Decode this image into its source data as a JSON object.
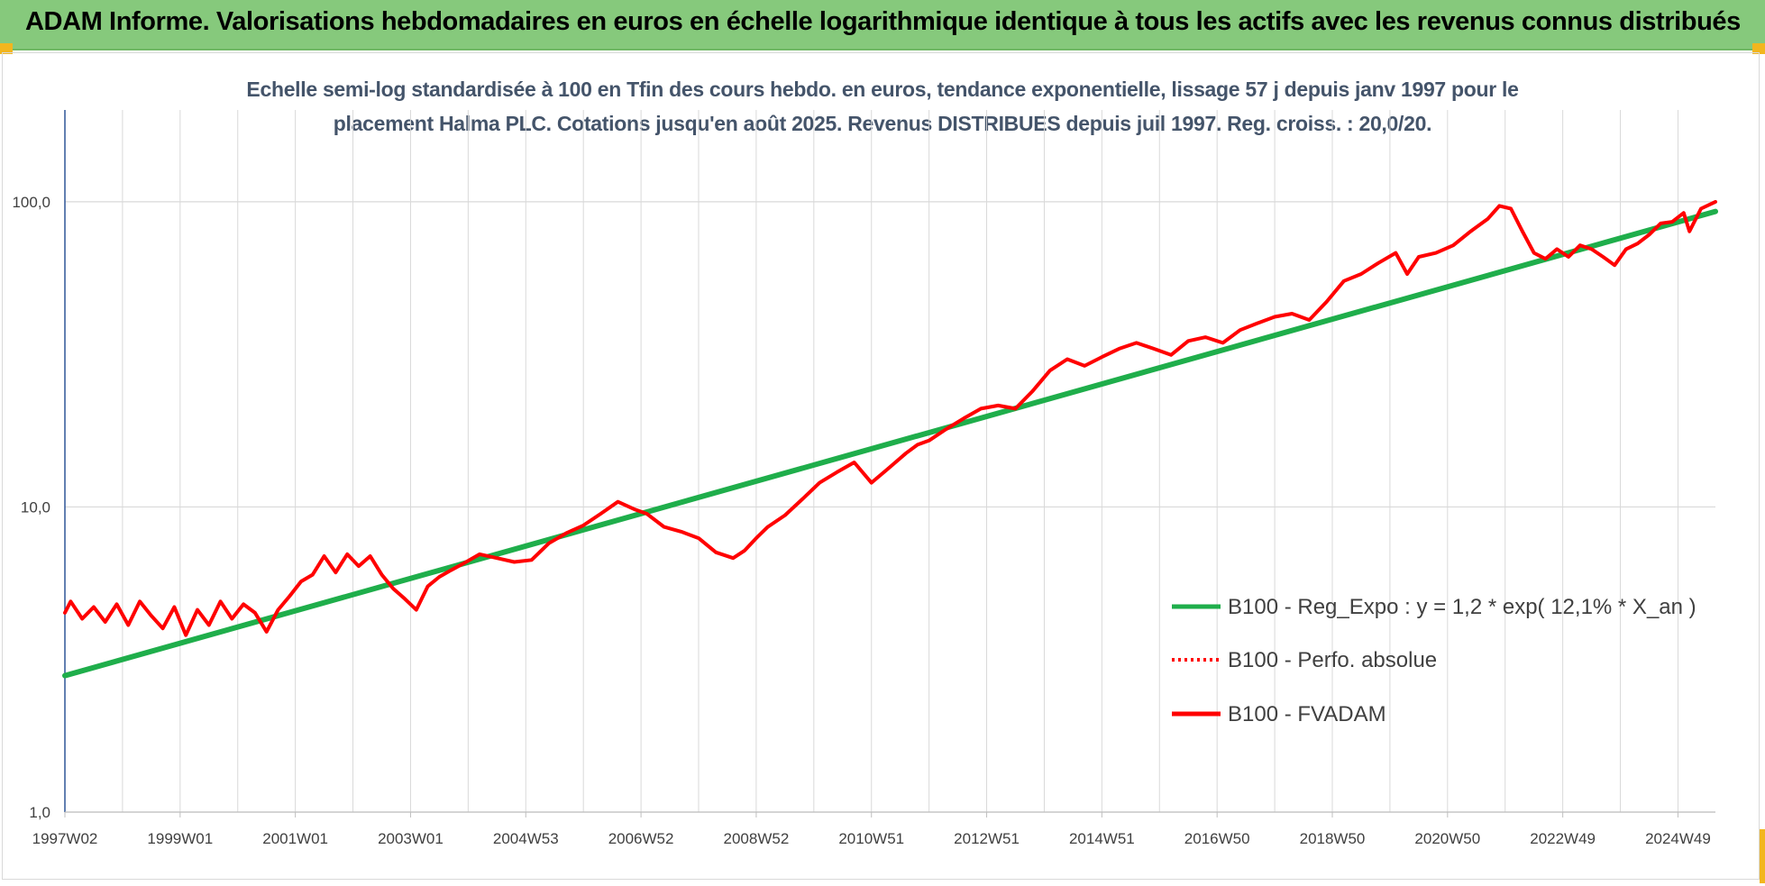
{
  "banner": {
    "title": "ADAM Informe. Valorisations hebdomadaires en euros en échelle logarithmique identique à tous les actifs avec les revenus connus distribués"
  },
  "colors": {
    "banner": "#86c97c",
    "accent_corner": "#f2b61e",
    "regression": "#1fae4b",
    "fvadam": "#ff0000",
    "perfo": "#ff0000",
    "grid": "#d9d9d9"
  },
  "chart_data": {
    "type": "line",
    "title_line1": "Echelle semi-log standardisée à 100 en Tfin des cours hebdo. en euros, tendance exponentielle, lissage 57 j depuis janv 1997 pour le",
    "title_line2": "placement Halma PLC. Cotations jusqu'en août 2025. Revenus DISTRIBUES depuis juil 1997. Reg. croiss. : 20,0/20.",
    "y_scale": "log",
    "ylim": [
      1,
      200
    ],
    "y_ticks": [
      "1,0",
      "10,0",
      "100,0"
    ],
    "y_tick_values": [
      1,
      10,
      100
    ],
    "xlim": [
      1997.0,
      2025.65
    ],
    "x_ticks": [
      "1997W02",
      "1999W01",
      "2001W01",
      "2003W01",
      "2004W53",
      "2006W52",
      "2008W52",
      "2010W51",
      "2012W51",
      "2014W51",
      "2016W50",
      "2018W50",
      "2020W50",
      "2022W49",
      "2024W49"
    ],
    "x_tick_values": [
      1997.0,
      1999.0,
      2001.0,
      2003.0,
      2005.0,
      2007.0,
      2009.0,
      2011.0,
      2013.0,
      2015.0,
      2017.0,
      2019.0,
      2021.0,
      2023.0,
      2025.0
    ],
    "grid": true,
    "legend_position": "right",
    "series": [
      {
        "name": "B100 - Reg_Expo : y = 1,2 * exp( 12,1% * X_an )",
        "style": "solid",
        "color": "#1fae4b",
        "x": [
          1997.0,
          2025.65
        ],
        "y": [
          2.8,
          93
        ]
      },
      {
        "name": "B100 - Perfo. absolue",
        "style": "dotted",
        "color": "#ff0000",
        "x": [],
        "y": []
      },
      {
        "name": "B100 - FVADAM",
        "style": "solid",
        "color": "#ff0000",
        "x": [
          1997.0,
          1997.1,
          1997.3,
          1997.5,
          1997.7,
          1997.9,
          1998.1,
          1998.3,
          1998.5,
          1998.7,
          1998.9,
          1999.1,
          1999.3,
          1999.5,
          1999.7,
          1999.9,
          2000.1,
          2000.3,
          2000.5,
          2000.7,
          2000.9,
          2001.1,
          2001.3,
          2001.5,
          2001.7,
          2001.9,
          2002.1,
          2002.3,
          2002.5,
          2002.7,
          2002.9,
          2003.1,
          2003.3,
          2003.5,
          2003.7,
          2003.9,
          2004.2,
          2004.5,
          2004.8,
          2005.1,
          2005.4,
          2005.7,
          2006.0,
          2006.3,
          2006.6,
          2006.9,
          2007.1,
          2007.4,
          2007.7,
          2008.0,
          2008.3,
          2008.6,
          2008.8,
          2009.0,
          2009.2,
          2009.5,
          2009.8,
          2010.1,
          2010.4,
          2010.7,
          2011.0,
          2011.3,
          2011.6,
          2011.8,
          2012.0,
          2012.3,
          2012.6,
          2012.9,
          2013.2,
          2013.5,
          2013.8,
          2014.1,
          2014.4,
          2014.7,
          2015.0,
          2015.3,
          2015.6,
          2015.9,
          2016.2,
          2016.5,
          2016.8,
          2017.1,
          2017.4,
          2017.7,
          2018.0,
          2018.3,
          2018.6,
          2018.9,
          2019.2,
          2019.5,
          2019.8,
          2020.1,
          2020.3,
          2020.5,
          2020.8,
          2021.1,
          2021.4,
          2021.7,
          2021.9,
          2022.1,
          2022.3,
          2022.5,
          2022.7,
          2022.9,
          2023.1,
          2023.3,
          2023.5,
          2023.7,
          2023.9,
          2024.1,
          2024.3,
          2024.5,
          2024.7,
          2024.9,
          2025.1,
          2025.2,
          2025.4,
          2025.65
        ],
        "y": [
          4.5,
          4.9,
          4.3,
          4.7,
          4.2,
          4.8,
          4.1,
          4.9,
          4.4,
          4.0,
          4.7,
          3.8,
          4.6,
          4.1,
          4.9,
          4.3,
          4.8,
          4.5,
          3.9,
          4.6,
          5.1,
          5.7,
          6.0,
          6.9,
          6.1,
          7.0,
          6.4,
          6.9,
          6.0,
          5.4,
          5.0,
          4.6,
          5.5,
          5.9,
          6.2,
          6.5,
          7.0,
          6.8,
          6.6,
          6.7,
          7.6,
          8.2,
          8.7,
          9.5,
          10.4,
          9.8,
          9.5,
          8.6,
          8.3,
          7.9,
          7.1,
          6.8,
          7.2,
          7.9,
          8.6,
          9.4,
          10.6,
          12.0,
          13.0,
          14.0,
          12.0,
          13.4,
          15.0,
          16.0,
          16.5,
          18.0,
          19.5,
          21.0,
          21.5,
          21.0,
          24.0,
          28.0,
          30.5,
          29.0,
          31.0,
          33.0,
          34.5,
          33.0,
          31.5,
          35.0,
          36.0,
          34.5,
          38.0,
          40.0,
          42.0,
          43.0,
          41.0,
          47.0,
          55.0,
          58.0,
          63.0,
          68.0,
          58.0,
          66.0,
          68.0,
          72.0,
          80.0,
          88.0,
          97.0,
          95.0,
          80.0,
          68.0,
          65.0,
          70.0,
          66.0,
          72.0,
          70.0,
          66.0,
          62.0,
          70.0,
          73.0,
          78.0,
          85.0,
          86.0,
          92.0,
          80.0,
          95.0,
          100.0
        ]
      }
    ]
  }
}
